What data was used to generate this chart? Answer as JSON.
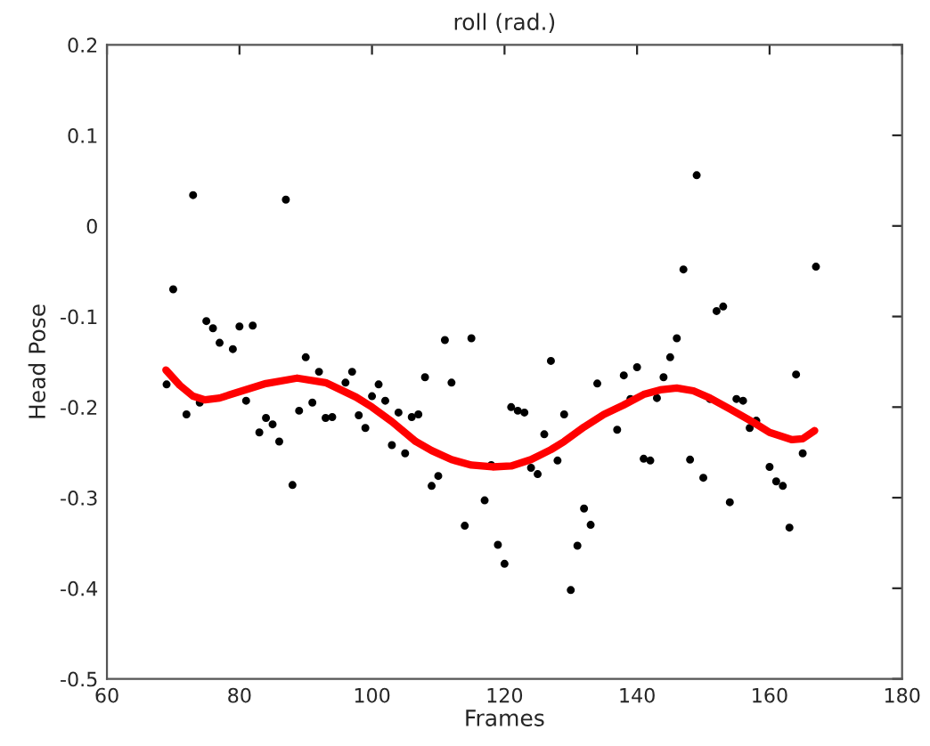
{
  "chart_data": {
    "type": "scatter",
    "title": "roll (rad.)",
    "xlabel": "Frames",
    "ylabel": "Head Pose",
    "xlim": [
      60,
      180
    ],
    "xticks": [
      60,
      80,
      100,
      120,
      140,
      160,
      180
    ],
    "ylim": [
      -0.5,
      0.2
    ],
    "yticks": [
      -0.5,
      -0.4,
      -0.3,
      -0.2,
      -0.1,
      0,
      0.1,
      0.2
    ],
    "grid": false,
    "legend": false,
    "series": [
      {
        "color": "#000000",
        "marker": "circle",
        "x": [
          69,
          70,
          72,
          73,
          74,
          75,
          76,
          77,
          79,
          80,
          81,
          82,
          83,
          84,
          85,
          86,
          87,
          88,
          89,
          90,
          91,
          92,
          93,
          94,
          96,
          97,
          98,
          99,
          100,
          101,
          102,
          103,
          104,
          105,
          106,
          107,
          108,
          109,
          110,
          111,
          112,
          114,
          115,
          117,
          118,
          119,
          120,
          121,
          122,
          123,
          124,
          125,
          126,
          127,
          128,
          129,
          130,
          131,
          132,
          133,
          134,
          137,
          138,
          139,
          140,
          141,
          142,
          143,
          144,
          145,
          146,
          147,
          148,
          149,
          150,
          151,
          152,
          153,
          154,
          155,
          156,
          157,
          158,
          160,
          161,
          162,
          163,
          164,
          165,
          167
        ],
        "values": [
          -0.175,
          -0.07,
          -0.208,
          0.034,
          -0.195,
          -0.105,
          -0.113,
          -0.129,
          -0.136,
          -0.111,
          -0.193,
          -0.11,
          -0.228,
          -0.212,
          -0.219,
          -0.238,
          0.029,
          -0.286,
          -0.204,
          -0.145,
          -0.195,
          -0.161,
          -0.212,
          -0.211,
          -0.173,
          -0.161,
          -0.209,
          -0.223,
          -0.188,
          -0.175,
          -0.193,
          -0.242,
          -0.206,
          -0.251,
          -0.211,
          -0.208,
          -0.167,
          -0.287,
          -0.276,
          -0.126,
          -0.173,
          -0.331,
          -0.124,
          -0.303,
          -0.264,
          -0.352,
          -0.373,
          -0.2,
          -0.204,
          -0.206,
          -0.267,
          -0.274,
          -0.23,
          -0.149,
          -0.259,
          -0.208,
          -0.402,
          -0.353,
          -0.312,
          -0.33,
          -0.174,
          -0.225,
          -0.165,
          -0.191,
          -0.156,
          -0.257,
          -0.259,
          -0.19,
          -0.167,
          -0.145,
          -0.124,
          -0.048,
          -0.258,
          0.056,
          -0.278,
          -0.191,
          -0.094,
          -0.089,
          -0.305,
          -0.191,
          -0.193,
          -0.223,
          -0.215,
          -0.266,
          -0.282,
          -0.287,
          -0.333,
          -0.164,
          -0.251,
          -0.045
        ]
      },
      {
        "type": "line",
        "color": "#ff0000",
        "marker": "none",
        "line_style": "solid",
        "x": [
          68.9,
          71,
          73,
          74.8,
          77,
          80,
          84,
          88.7,
          93,
          97.6,
          100,
          103,
          106.6,
          109,
          112,
          115,
          118.2,
          121,
          124,
          127,
          129,
          132,
          135,
          137.9,
          141,
          143.5,
          146,
          148.5,
          151,
          154,
          157.6,
          160,
          163.4,
          165,
          166.8
        ],
        "values": [
          -0.159,
          -0.176,
          -0.188,
          -0.192,
          -0.19,
          -0.183,
          -0.174,
          -0.168,
          -0.173,
          -0.189,
          -0.2,
          -0.216,
          -0.238,
          -0.248,
          -0.258,
          -0.264,
          -0.266,
          -0.265,
          -0.258,
          -0.247,
          -0.238,
          -0.222,
          -0.208,
          -0.198,
          -0.186,
          -0.181,
          -0.179,
          -0.182,
          -0.19,
          -0.202,
          -0.217,
          -0.228,
          -0.236,
          -0.235,
          -0.226
        ]
      }
    ]
  }
}
